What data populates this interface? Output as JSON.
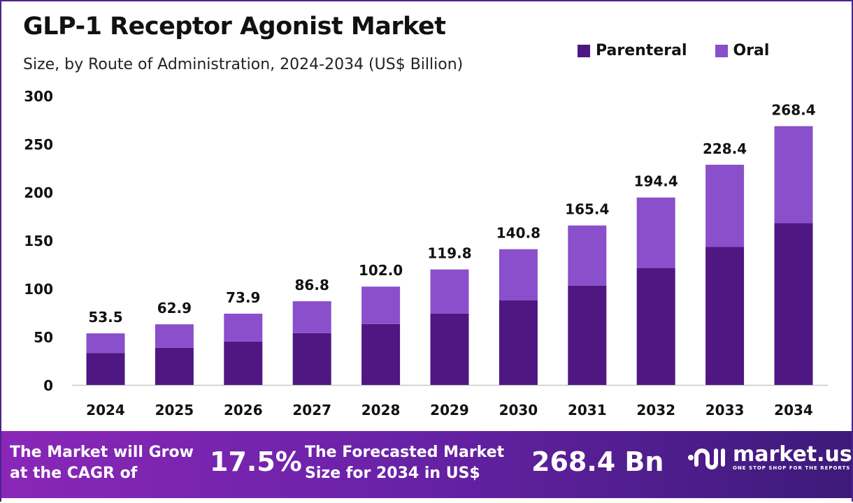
{
  "chart_data": {
    "type": "bar",
    "stacked": true,
    "title": "GLP-1 Receptor Agonist Market",
    "subtitle": "Size, by Route of Administration, 2024-2034 (US$ Billion)",
    "categories": [
      "2024",
      "2025",
      "2026",
      "2027",
      "2028",
      "2029",
      "2030",
      "2031",
      "2032",
      "2033",
      "2034"
    ],
    "totals": [
      "53.5",
      "62.9",
      "73.9",
      "86.8",
      "102.0",
      "119.8",
      "140.8",
      "165.4",
      "194.4",
      "228.4",
      "268.4"
    ],
    "series": [
      {
        "name": "Parenteral",
        "color": "#4e1782",
        "values": [
          33,
          38.5,
          45,
          53.8,
          63.2,
          74.1,
          87.9,
          103.1,
          121.3,
          143.1,
          167.8
        ]
      },
      {
        "name": "Oral",
        "color": "#8a4fcb",
        "values": [
          20.5,
          24.4,
          28.9,
          33.0,
          38.8,
          45.7,
          52.9,
          62.3,
          73.1,
          85.3,
          100.6
        ]
      }
    ],
    "yticks": [
      "0",
      "50",
      "100",
      "150",
      "200",
      "250",
      "300"
    ],
    "ylim": [
      0,
      300
    ],
    "grid": false,
    "legend_position": "top-right"
  },
  "footer": {
    "cagr_label": [
      "The Market will Grow",
      "at the CAGR of"
    ],
    "cagr_value": "17.5%",
    "forecast_label": [
      "The Forecasted Market",
      "Size for 2034 in US$"
    ],
    "forecast_value": "268.4 Bn",
    "logo_name": "market.us",
    "logo_tagline": "ONE STOP SHOP FOR THE REPORTS"
  }
}
